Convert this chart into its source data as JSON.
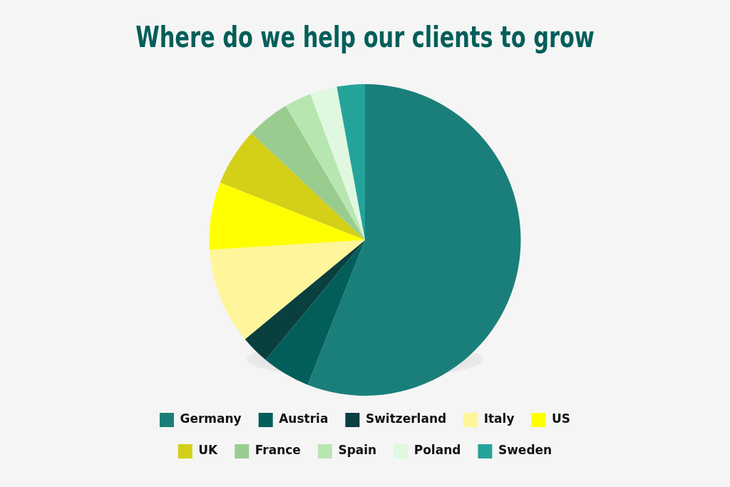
{
  "chart_data": {
    "type": "pie",
    "title": "Where do we help our clients to grow",
    "categories": [
      "Germany",
      "Austria",
      "Switzerland",
      "Italy",
      "US",
      "UK",
      "France",
      "Spain",
      "Poland",
      "Sweden"
    ],
    "values": [
      56,
      5,
      3,
      10,
      7,
      6,
      4.5,
      2.8,
      2.8,
      2.9
    ],
    "colors": [
      "#1a7f7a",
      "#035e5a",
      "#0a3f3f",
      "#fff59a",
      "#ffff00",
      "#d4cf17",
      "#99cc8f",
      "#b8e6b0",
      "#e0f8e0",
      "#24a39b"
    ],
    "legend": "bottom"
  }
}
